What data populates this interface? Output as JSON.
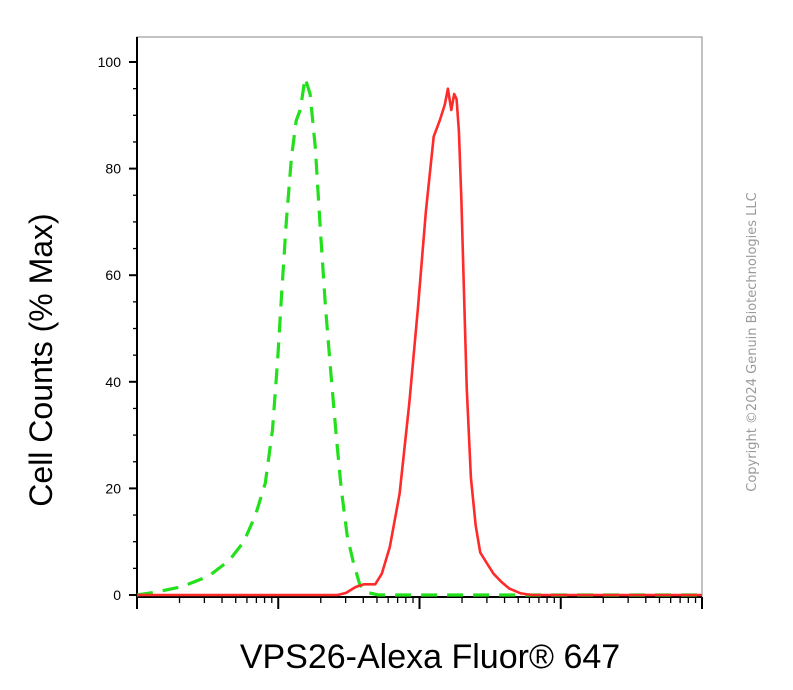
{
  "chart_data": {
    "type": "line",
    "title": "",
    "xlabel": "VPS26-Alexa Fluor® 647",
    "ylabel": "Cell Counts (% Max)",
    "x_scale": "log",
    "xlim": [
      1,
      10000
    ],
    "ylim": [
      -1,
      103
    ],
    "y_ticks": [
      0,
      20,
      40,
      60,
      80,
      100
    ],
    "y_tick_labels": [
      "0",
      "20",
      "40",
      "60",
      "80",
      "100"
    ],
    "x_tick_labels": [],
    "grid": false,
    "legend": "none",
    "series": [
      {
        "color": "#22e01b",
        "style": "dashed",
        "x": [
          1.0,
          1.4,
          2.1,
          3.2,
          4.5,
          5.7,
          6.9,
          8.1,
          9.1,
          9.9,
          10.6,
          11.4,
          12.4,
          13.4,
          14.3,
          15.5,
          16.8,
          18.3,
          19.8,
          21.6,
          23.5,
          25.7,
          27.9,
          30.8,
          34.1,
          37.7,
          42.1,
          51.5,
          100,
          1000,
          10000
        ],
        "y": [
          0,
          0.6,
          1.6,
          3.5,
          6.5,
          10,
          15,
          21,
          31,
          44,
          57,
          70,
          82,
          89,
          91,
          97,
          94,
          84,
          69,
          54,
          42,
          30,
          20,
          11,
          6,
          2,
          0.5,
          0,
          0,
          0,
          0
        ]
      },
      {
        "color": "#ff2a2a",
        "style": "solid",
        "x": [
          1.0,
          10,
          20.3,
          26.3,
          30.2,
          35.3,
          40.5,
          43.9,
          48.6,
          54.1,
          61.6,
          72.3,
          84.7,
          97.6,
          111,
          126,
          139,
          151,
          159,
          168,
          176,
          183,
          190,
          198,
          207,
          216,
          231,
          250,
          269,
          299,
          334,
          379,
          433,
          521,
          626,
          751,
          1000,
          3000,
          10000
        ],
        "y": [
          0,
          0,
          0,
          0,
          0.4,
          1.5,
          2,
          2,
          2,
          4,
          9,
          19,
          36,
          54,
          72,
          86,
          89,
          92,
          95,
          91,
          94,
          93,
          87,
          74,
          56,
          39,
          22,
          13,
          8,
          6,
          4,
          2.5,
          1.2,
          0.3,
          0,
          0,
          0,
          0,
          0
        ]
      }
    ]
  },
  "copyright": "Copyright ©2024 Genuin Biotechnologies LLC"
}
